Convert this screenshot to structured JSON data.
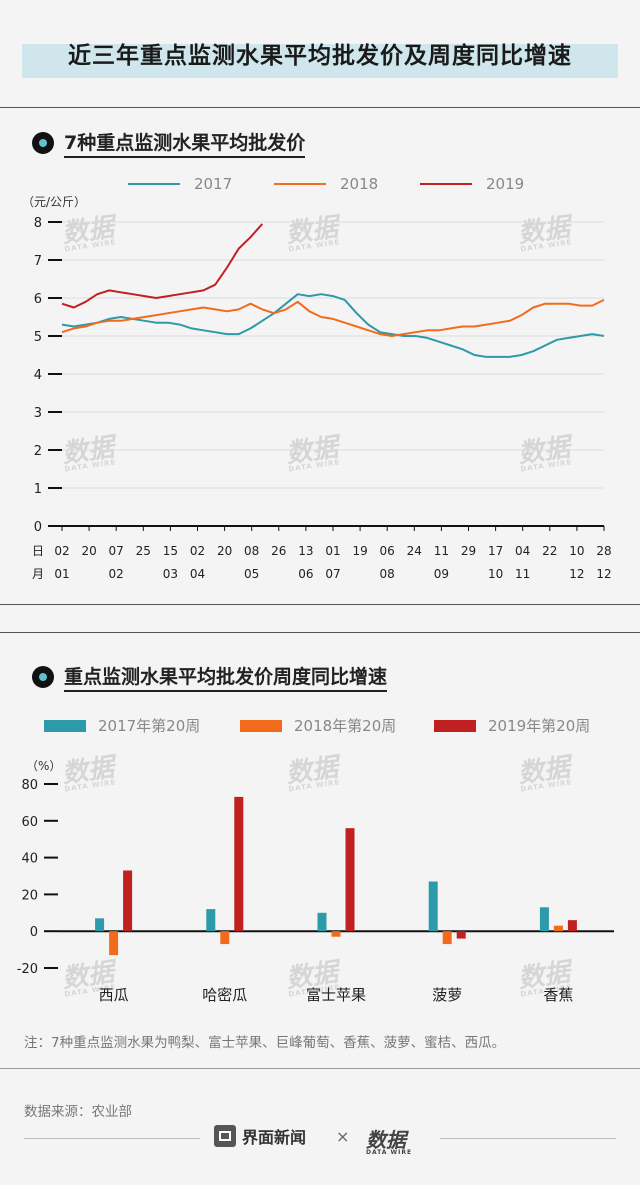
{
  "main_title": "近三年重点监测水果平均批发价及周度同比增速",
  "section1": {
    "title": "7种重点监测水果平均批发价",
    "unit": "（元/公斤）",
    "x_row_day_label": "日",
    "x_row_month_label": "月"
  },
  "section2": {
    "title": "重点监测水果平均批发价周度同比增速",
    "unit": "（%）"
  },
  "note": "注：7种重点监测水果为鸭梨、富士苹果、巨峰葡萄、香蕉、菠萝、蜜桔、西瓜。",
  "source": "数据来源：农业部",
  "footer": {
    "brand": "界面新闻",
    "times": "×",
    "logo": "数据",
    "logo_sub": "DATA WIRE"
  },
  "watermark": {
    "text": "数据",
    "sub": "DATA WIRE"
  },
  "colors": {
    "c2017": "#2c9aa8",
    "c2018": "#f26b1d",
    "c2019": "#c0201f"
  },
  "chart_data": [
    {
      "type": "line",
      "title": "7种重点监测水果平均批发价",
      "ylabel": "（元/公斤）",
      "ylim": [
        0,
        8
      ],
      "yticks": [
        0,
        1,
        2,
        3,
        4,
        5,
        6,
        7,
        8
      ],
      "x_ticks": [
        {
          "day": "02",
          "month": "01"
        },
        {
          "day": "20",
          "month": ""
        },
        {
          "day": "07",
          "month": "02"
        },
        {
          "day": "25",
          "month": ""
        },
        {
          "day": "15",
          "month": "03"
        },
        {
          "day": "02",
          "month": "04"
        },
        {
          "day": "20",
          "month": ""
        },
        {
          "day": "08",
          "month": "05"
        },
        {
          "day": "26",
          "month": ""
        },
        {
          "day": "13",
          "month": "06"
        },
        {
          "day": "01",
          "month": "07"
        },
        {
          "day": "19",
          "month": ""
        },
        {
          "day": "06",
          "month": "08"
        },
        {
          "day": "24",
          "month": ""
        },
        {
          "day": "11",
          "month": "09"
        },
        {
          "day": "29",
          "month": ""
        },
        {
          "day": "17",
          "month": "10"
        },
        {
          "day": "04",
          "month": "11"
        },
        {
          "day": "22",
          "month": ""
        },
        {
          "day": "10",
          "month": "12"
        },
        {
          "day": "28",
          "month": "12"
        }
      ],
      "series": [
        {
          "name": "2017",
          "color": "#2c9aa8",
          "values": [
            5.3,
            5.25,
            5.3,
            5.35,
            5.45,
            5.5,
            5.45,
            5.4,
            5.35,
            5.35,
            5.3,
            5.2,
            5.15,
            5.1,
            5.05,
            5.05,
            5.2,
            5.4,
            5.6,
            5.85,
            6.1,
            6.05,
            6.1,
            6.05,
            5.95,
            5.6,
            5.3,
            5.1,
            5.05,
            5.0,
            5.0,
            4.95,
            4.85,
            4.75,
            4.65,
            4.5,
            4.45,
            4.45,
            4.45,
            4.5,
            4.6,
            4.75,
            4.9,
            4.95,
            5.0,
            5.05,
            5.0
          ]
        },
        {
          "name": "2018",
          "color": "#f26b1d",
          "values": [
            5.1,
            5.2,
            5.25,
            5.35,
            5.4,
            5.4,
            5.45,
            5.5,
            5.55,
            5.6,
            5.65,
            5.7,
            5.75,
            5.7,
            5.65,
            5.7,
            5.85,
            5.7,
            5.6,
            5.7,
            5.9,
            5.65,
            5.5,
            5.45,
            5.35,
            5.25,
            5.15,
            5.05,
            5.0,
            5.05,
            5.1,
            5.15,
            5.15,
            5.2,
            5.25,
            5.25,
            5.3,
            5.35,
            5.4,
            5.55,
            5.75,
            5.85,
            5.85,
            5.85,
            5.8,
            5.8,
            5.95
          ]
        },
        {
          "name": "2019",
          "color": "#c0201f",
          "values": [
            5.85,
            5.75,
            5.9,
            6.1,
            6.2,
            6.15,
            6.1,
            6.05,
            6.0,
            6.05,
            6.1,
            6.15,
            6.2,
            6.35,
            6.8,
            7.3,
            7.6,
            7.95
          ]
        }
      ]
    },
    {
      "type": "bar",
      "title": "重点监测水果平均批发价周度同比增速",
      "ylabel": "（%）",
      "ylim": [
        -20,
        80
      ],
      "yticks": [
        -20,
        0,
        20,
        40,
        60,
        80
      ],
      "categories": [
        "西瓜",
        "哈密瓜",
        "富士苹果",
        "菠萝",
        "香蕉"
      ],
      "series": [
        {
          "name": "2017年第20周",
          "color": "#2c9aa8",
          "values": [
            7,
            12,
            10,
            27,
            13
          ]
        },
        {
          "name": "2018年第20周",
          "color": "#f26b1d",
          "values": [
            -13,
            -7,
            -3,
            -7,
            3
          ]
        },
        {
          "name": "2019年第20周",
          "color": "#c0201f",
          "values": [
            33,
            73,
            56,
            -4,
            6
          ]
        }
      ]
    }
  ]
}
